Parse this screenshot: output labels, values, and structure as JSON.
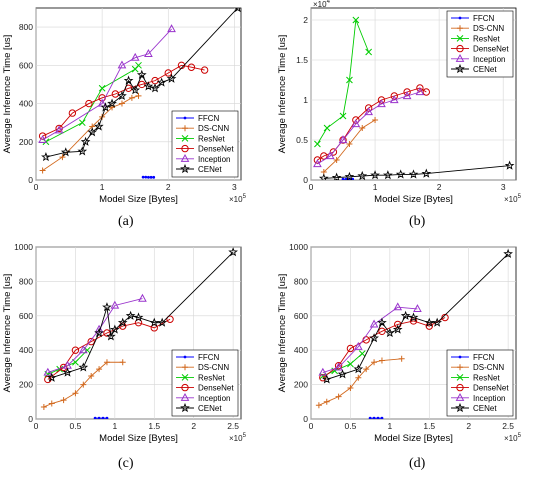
{
  "colors": {
    "FFCN": "#0000ff",
    "DS-CNN": "#d2691e",
    "ResNet": "#00cc00",
    "DenseNet": "#cc0000",
    "Inception": "#9933cc",
    "CENet": "#000000"
  },
  "markers": {
    "FFCN": "dot",
    "DS-CNN": "plus",
    "ResNet": "cross",
    "DenseNet": "circle",
    "Inception": "triangle",
    "CENet": "star"
  },
  "chart_data": [
    {
      "panel": "(a)",
      "type": "line",
      "xlabel": "Model Size [Bytes]",
      "ylabel": "Average Inference Time [us]",
      "x_multiplier": "×10^5",
      "xlim": [
        0,
        3.1
      ],
      "ylim": [
        0,
        900
      ],
      "xticks": [
        0,
        1,
        2,
        3
      ],
      "yticks": [
        0,
        200,
        400,
        600,
        800
      ],
      "ytick_labels": [
        "0",
        "200",
        "400",
        "600",
        "800"
      ],
      "grid": true,
      "legend_position": "bottom-right",
      "series": [
        {
          "name": "FFCN",
          "x": [
            1.62,
            1.66,
            1.7,
            1.74,
            1.78
          ],
          "y": [
            15,
            15,
            14,
            14,
            14
          ]
        },
        {
          "name": "DS-CNN",
          "x": [
            0.1,
            0.4,
            0.85,
            1.0,
            1.15,
            1.3,
            1.45,
            1.55
          ],
          "y": [
            50,
            120,
            280,
            330,
            380,
            400,
            430,
            440
          ]
        },
        {
          "name": "ResNet",
          "x": [
            0.15,
            0.7,
            1.0,
            1.5,
            1.55
          ],
          "y": [
            200,
            300,
            480,
            580,
            600
          ]
        },
        {
          "name": "DenseNet",
          "x": [
            0.1,
            0.35,
            0.55,
            0.8,
            1.0,
            1.2,
            1.4,
            1.6,
            1.8,
            2.0,
            2.2,
            2.35,
            2.55
          ],
          "y": [
            230,
            270,
            350,
            400,
            430,
            450,
            480,
            500,
            520,
            560,
            600,
            590,
            575
          ]
        },
        {
          "name": "Inception",
          "x": [
            0.1,
            0.35,
            1.0,
            1.3,
            1.5,
            1.7,
            2.05
          ],
          "y": [
            210,
            260,
            400,
            600,
            640,
            660,
            790
          ]
        },
        {
          "name": "CENet",
          "x": [
            0.15,
            0.45,
            0.7,
            0.75,
            0.85,
            0.95,
            1.05,
            1.15,
            1.3,
            1.4,
            1.5,
            1.6,
            1.7,
            1.8,
            1.9,
            2.05,
            3.05
          ],
          "y": [
            120,
            145,
            150,
            200,
            250,
            280,
            380,
            400,
            440,
            520,
            470,
            550,
            490,
            480,
            510,
            530,
            900
          ]
        }
      ]
    },
    {
      "panel": "(b)",
      "type": "line",
      "xlabel": "Model Size [Bytes]",
      "ylabel": "Average Inference Time [us]",
      "x_multiplier": "×10^5",
      "y_multiplier": "×10^4",
      "xlim": [
        0,
        3.2
      ],
      "ylim": [
        0,
        2.15
      ],
      "xticks": [
        0,
        1,
        2,
        3
      ],
      "yticks": [
        0,
        0.5,
        1,
        1.5,
        2
      ],
      "ytick_labels": [
        "0",
        "0.5",
        "1",
        "1.5",
        "2"
      ],
      "grid": true,
      "legend_position": "top-right",
      "series": [
        {
          "name": "FFCN",
          "x": [
            0.5,
            0.55,
            0.6,
            0.65
          ],
          "y": [
            0.01,
            0.01,
            0.01,
            0.01
          ]
        },
        {
          "name": "DS-CNN",
          "x": [
            0.2,
            0.4,
            0.6,
            0.8,
            1.0
          ],
          "y": [
            0.1,
            0.25,
            0.45,
            0.65,
            0.75
          ]
        },
        {
          "name": "ResNet",
          "x": [
            0.1,
            0.25,
            0.5,
            0.6,
            0.7,
            0.9
          ],
          "y": [
            0.45,
            0.65,
            0.8,
            1.25,
            2.0,
            1.6
          ]
        },
        {
          "name": "DenseNet",
          "x": [
            0.1,
            0.2,
            0.35,
            0.5,
            0.7,
            0.9,
            1.1,
            1.3,
            1.5,
            1.7,
            1.8
          ],
          "y": [
            0.25,
            0.3,
            0.35,
            0.5,
            0.75,
            0.9,
            1.0,
            1.05,
            1.1,
            1.15,
            1.1
          ]
        },
        {
          "name": "Inception",
          "x": [
            0.1,
            0.3,
            0.5,
            0.7,
            0.9,
            1.1,
            1.3,
            1.5,
            1.7
          ],
          "y": [
            0.2,
            0.3,
            0.5,
            0.7,
            0.85,
            0.95,
            1.0,
            1.05,
            1.1
          ]
        },
        {
          "name": "CENet",
          "x": [
            0.2,
            0.4,
            0.6,
            0.8,
            1.0,
            1.2,
            1.4,
            1.6,
            1.8,
            3.1
          ],
          "y": [
            0.02,
            0.03,
            0.04,
            0.05,
            0.06,
            0.06,
            0.07,
            0.07,
            0.08,
            0.18
          ]
        }
      ]
    },
    {
      "panel": "(c)",
      "type": "line",
      "xlabel": "Model Size [Bytes]",
      "ylabel": "Average Inference Time [us]",
      "x_multiplier": "×10^5",
      "xlim": [
        0,
        2.6
      ],
      "ylim": [
        0,
        1000
      ],
      "xticks": [
        0,
        0.5,
        1,
        1.5,
        2,
        2.5
      ],
      "yticks": [
        0,
        200,
        400,
        600,
        800,
        1000
      ],
      "ytick_labels": [
        "0",
        "200",
        "400",
        "600",
        "800",
        "1000"
      ],
      "grid": true,
      "legend_position": "bottom-right",
      "series": [
        {
          "name": "FFCN",
          "x": [
            0.75,
            0.8,
            0.85,
            0.9
          ],
          "y": [
            5,
            5,
            5,
            5
          ]
        },
        {
          "name": "DS-CNN",
          "x": [
            0.1,
            0.2,
            0.35,
            0.5,
            0.6,
            0.7,
            0.8,
            0.9,
            1.1
          ],
          "y": [
            70,
            90,
            110,
            150,
            200,
            250,
            290,
            330,
            330
          ]
        },
        {
          "name": "ResNet",
          "x": [
            0.15,
            0.3,
            0.5,
            0.65
          ],
          "y": [
            260,
            290,
            330,
            400
          ]
        },
        {
          "name": "DenseNet",
          "x": [
            0.15,
            0.35,
            0.5,
            0.7,
            0.9,
            1.1,
            1.3,
            1.5,
            1.7
          ],
          "y": [
            230,
            300,
            400,
            450,
            500,
            540,
            560,
            530,
            580
          ]
        },
        {
          "name": "Inception",
          "x": [
            0.15,
            0.4,
            0.6,
            0.8,
            1.0,
            1.35
          ],
          "y": [
            270,
            310,
            400,
            520,
            660,
            700
          ]
        },
        {
          "name": "CENet",
          "x": [
            0.2,
            0.4,
            0.6,
            0.8,
            0.9,
            0.95,
            1.0,
            1.1,
            1.2,
            1.3,
            1.5,
            1.6,
            2.5
          ],
          "y": [
            240,
            270,
            300,
            500,
            650,
            480,
            520,
            560,
            600,
            590,
            560,
            560,
            970
          ]
        }
      ]
    },
    {
      "panel": "(d)",
      "type": "line",
      "xlabel": "Model Size [Bytes]",
      "ylabel": "Average Inference Time [us]",
      "x_multiplier": "×10^5",
      "xlim": [
        0,
        2.6
      ],
      "ylim": [
        0,
        1000
      ],
      "xticks": [
        0,
        0.5,
        1,
        1.5,
        2,
        2.5
      ],
      "yticks": [
        0,
        200,
        400,
        600,
        800,
        1000
      ],
      "ytick_labels": [
        "0",
        "200",
        "400",
        "600",
        "800",
        "1000"
      ],
      "grid": true,
      "legend_position": "bottom-right",
      "series": [
        {
          "name": "FFCN",
          "x": [
            0.75,
            0.8,
            0.85,
            0.9
          ],
          "y": [
            5,
            5,
            5,
            5
          ]
        },
        {
          "name": "DS-CNN",
          "x": [
            0.1,
            0.2,
            0.35,
            0.5,
            0.6,
            0.7,
            0.8,
            0.9,
            1.15
          ],
          "y": [
            80,
            100,
            130,
            180,
            240,
            290,
            330,
            340,
            350
          ]
        },
        {
          "name": "ResNet",
          "x": [
            0.15,
            0.3,
            0.5,
            0.65
          ],
          "y": [
            250,
            280,
            320,
            380
          ]
        },
        {
          "name": "DenseNet",
          "x": [
            0.15,
            0.35,
            0.5,
            0.7,
            0.9,
            1.1,
            1.3,
            1.5,
            1.7
          ],
          "y": [
            240,
            310,
            410,
            460,
            510,
            550,
            570,
            540,
            590
          ]
        },
        {
          "name": "Inception",
          "x": [
            0.15,
            0.35,
            0.6,
            0.8,
            1.1,
            1.35
          ],
          "y": [
            270,
            300,
            420,
            550,
            650,
            640
          ]
        },
        {
          "name": "CENet",
          "x": [
            0.2,
            0.4,
            0.6,
            0.8,
            0.9,
            1.0,
            1.1,
            1.2,
            1.3,
            1.5,
            1.6,
            2.5
          ],
          "y": [
            230,
            260,
            290,
            470,
            560,
            500,
            520,
            600,
            590,
            560,
            560,
            960
          ]
        }
      ]
    }
  ]
}
